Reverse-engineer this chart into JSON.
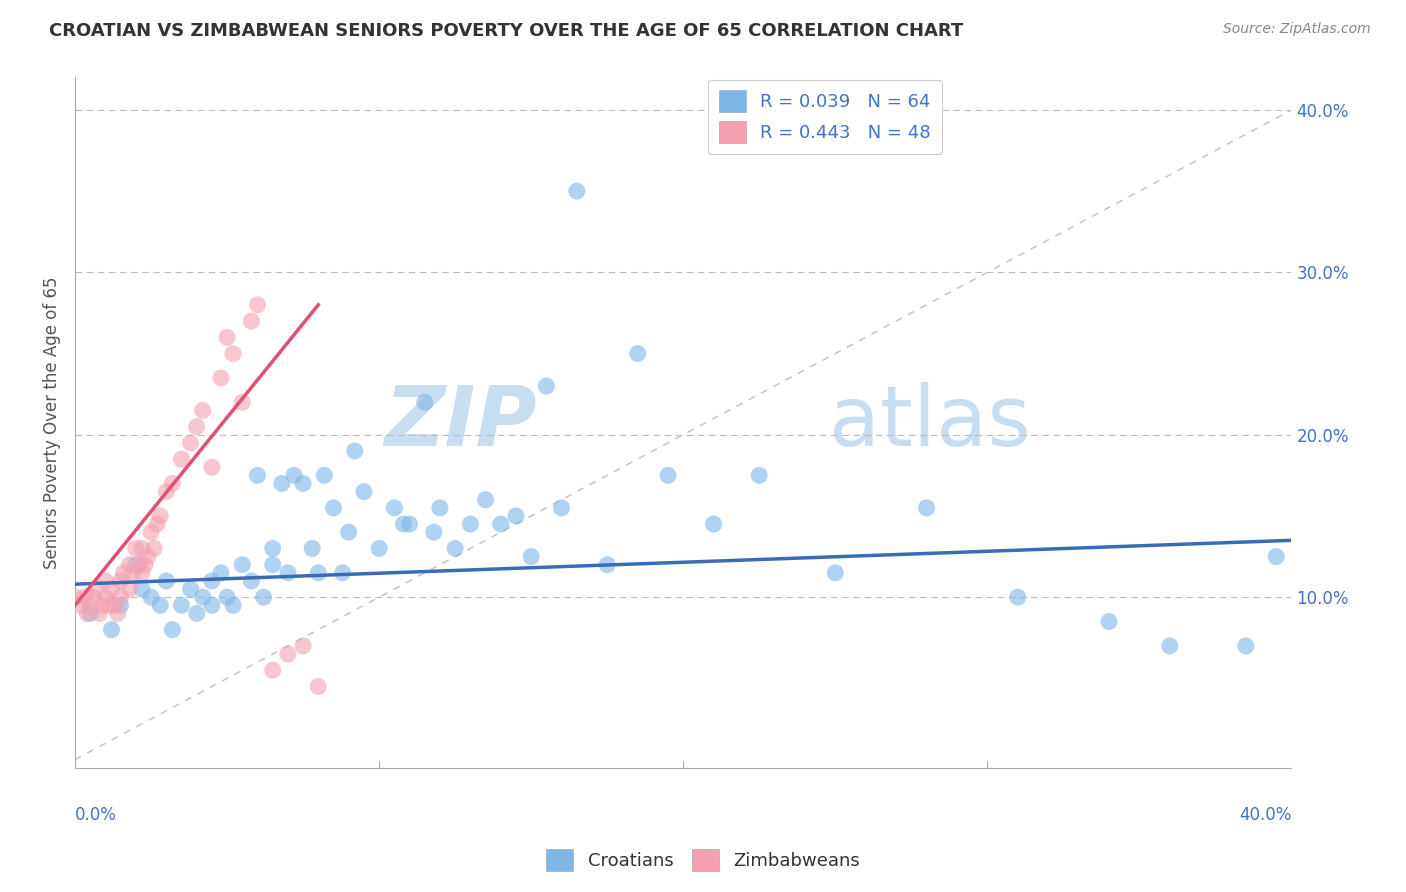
{
  "title": "CROATIAN VS ZIMBABWEAN SENIORS POVERTY OVER THE AGE OF 65 CORRELATION CHART",
  "source": "Source: ZipAtlas.com",
  "ylabel": "Seniors Poverty Over the Age of 65",
  "xlim": [
    0.0,
    0.4
  ],
  "ylim": [
    -0.005,
    0.42
  ],
  "croatian_color": "#7EB6E8",
  "zimbabwean_color": "#F4A0B0",
  "trendline_croatian_color": "#3A6DB5",
  "trendline_zimbabwean_color": "#E05070",
  "watermark_zip": "ZIP",
  "watermark_atlas": "atlas",
  "watermark_color": "#C8DDEF",
  "grid_color": "#BBBBBB",
  "croatian_x": [
    0.005,
    0.012,
    0.015,
    0.02,
    0.022,
    0.025,
    0.028,
    0.03,
    0.032,
    0.035,
    0.038,
    0.04,
    0.042,
    0.045,
    0.045,
    0.048,
    0.05,
    0.052,
    0.055,
    0.058,
    0.06,
    0.062,
    0.065,
    0.065,
    0.068,
    0.07,
    0.072,
    0.075,
    0.078,
    0.08,
    0.082,
    0.085,
    0.088,
    0.09,
    0.092,
    0.095,
    0.1,
    0.105,
    0.108,
    0.11,
    0.115,
    0.118,
    0.12,
    0.125,
    0.13,
    0.135,
    0.14,
    0.145,
    0.15,
    0.155,
    0.16,
    0.165,
    0.175,
    0.185,
    0.195,
    0.21,
    0.225,
    0.25,
    0.28,
    0.31,
    0.34,
    0.36,
    0.385,
    0.395
  ],
  "croatian_y": [
    0.09,
    0.08,
    0.095,
    0.12,
    0.105,
    0.1,
    0.095,
    0.11,
    0.08,
    0.095,
    0.105,
    0.09,
    0.1,
    0.11,
    0.095,
    0.115,
    0.1,
    0.095,
    0.12,
    0.11,
    0.175,
    0.1,
    0.12,
    0.13,
    0.17,
    0.115,
    0.175,
    0.17,
    0.13,
    0.115,
    0.175,
    0.155,
    0.115,
    0.14,
    0.19,
    0.165,
    0.13,
    0.155,
    0.145,
    0.145,
    0.22,
    0.14,
    0.155,
    0.13,
    0.145,
    0.16,
    0.145,
    0.15,
    0.125,
    0.23,
    0.155,
    0.35,
    0.12,
    0.25,
    0.175,
    0.145,
    0.175,
    0.115,
    0.155,
    0.1,
    0.085,
    0.07,
    0.07,
    0.125
  ],
  "zimbabwean_x": [
    0.0,
    0.002,
    0.003,
    0.004,
    0.005,
    0.006,
    0.007,
    0.008,
    0.009,
    0.01,
    0.01,
    0.011,
    0.012,
    0.013,
    0.014,
    0.015,
    0.015,
    0.016,
    0.018,
    0.018,
    0.019,
    0.02,
    0.021,
    0.022,
    0.022,
    0.023,
    0.024,
    0.025,
    0.026,
    0.027,
    0.028,
    0.03,
    0.032,
    0.035,
    0.038,
    0.04,
    0.042,
    0.045,
    0.048,
    0.05,
    0.052,
    0.055,
    0.058,
    0.06,
    0.065,
    0.07,
    0.075,
    0.08
  ],
  "zimbabwean_y": [
    0.1,
    0.095,
    0.1,
    0.09,
    0.095,
    0.1,
    0.105,
    0.09,
    0.095,
    0.1,
    0.11,
    0.095,
    0.105,
    0.095,
    0.09,
    0.11,
    0.1,
    0.115,
    0.12,
    0.105,
    0.115,
    0.13,
    0.12,
    0.13,
    0.115,
    0.12,
    0.125,
    0.14,
    0.13,
    0.145,
    0.15,
    0.165,
    0.17,
    0.185,
    0.195,
    0.205,
    0.215,
    0.18,
    0.235,
    0.26,
    0.25,
    0.22,
    0.27,
    0.28,
    0.055,
    0.065,
    0.07,
    0.045
  ],
  "zim_trend_x_start": 0.0,
  "zim_trend_x_end": 0.08,
  "zim_trend_y_start": 0.095,
  "zim_trend_y_end": 0.28,
  "cro_trend_x_start": 0.0,
  "cro_trend_x_end": 0.4,
  "cro_trend_y_start": 0.108,
  "cro_trend_y_end": 0.135
}
